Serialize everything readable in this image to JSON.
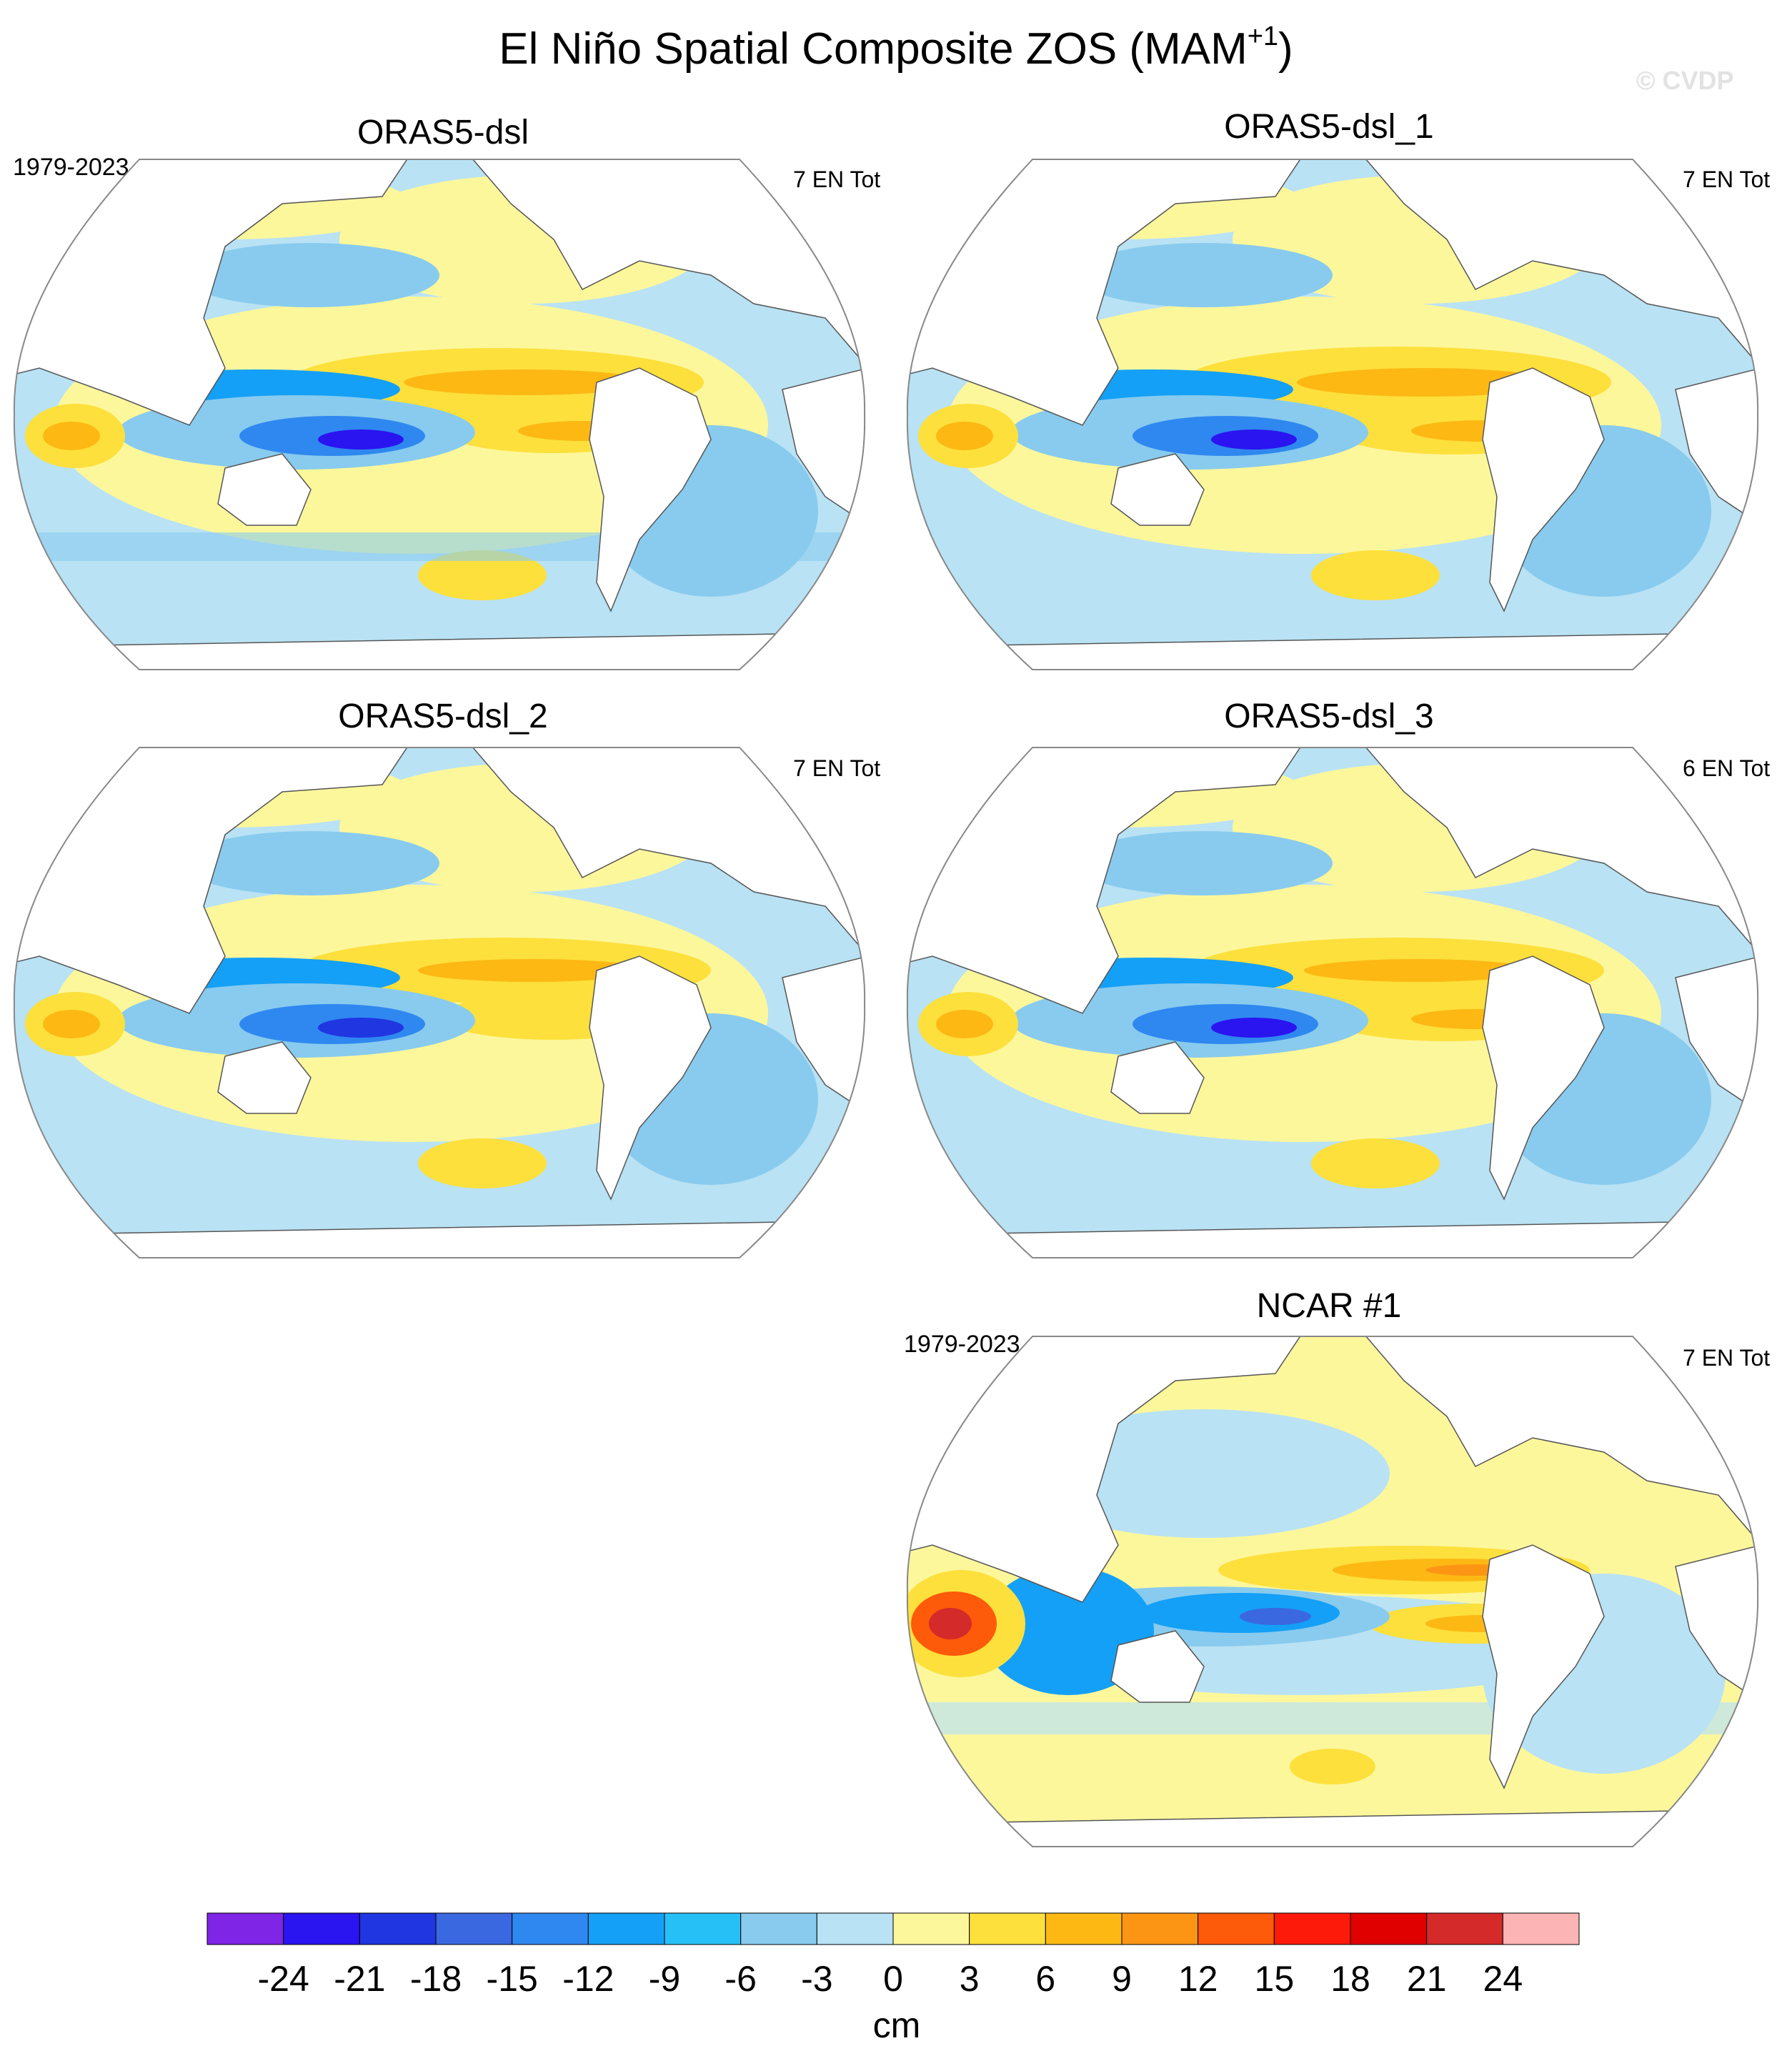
{
  "figure": {
    "title_main": "El Niño Spatial Composite ZOS (MAM",
    "title_sup": "+1",
    "title_close": ")",
    "watermark": "© CVDP"
  },
  "panels": [
    {
      "title": "ORAS5-dsl",
      "period": "1979-2023",
      "count": "7 EN Tot"
    },
    {
      "title": "ORAS5-dsl_1",
      "period": "",
      "count": "7 EN Tot"
    },
    {
      "title": "ORAS5-dsl_2",
      "period": "",
      "count": "7 EN Tot"
    },
    {
      "title": "ORAS5-dsl_3",
      "period": "",
      "count": "6 EN Tot"
    },
    {
      "title": "NCAR #1",
      "period": "1979-2023",
      "count": "7 EN Tot"
    }
  ],
  "colorbar": {
    "units": "cm",
    "labels": [
      "-24",
      "-21",
      "-18",
      "-15",
      "-12",
      "-9",
      "-6",
      "-3",
      "0",
      "3",
      "6",
      "9",
      "12",
      "15",
      "18",
      "21",
      "24"
    ],
    "colors": [
      "#7f25e6",
      "#2a14f0",
      "#1f36e0",
      "#3a68e0",
      "#2f88f0",
      "#14a0f6",
      "#27c0f6",
      "#88cbee",
      "#b9e2f4",
      "#fdf79c",
      "#fde03c",
      "#fdb814",
      "#fd9514",
      "#fd5a0a",
      "#fd1a0a",
      "#e00000",
      "#d42a2a",
      "#fcb4b4"
    ]
  },
  "palette": {
    "ocean_weak_pos": "#fdf79c",
    "ocean_weak_neg": "#b9e2f4",
    "land": "#ffffff",
    "coast": "#555555"
  }
}
